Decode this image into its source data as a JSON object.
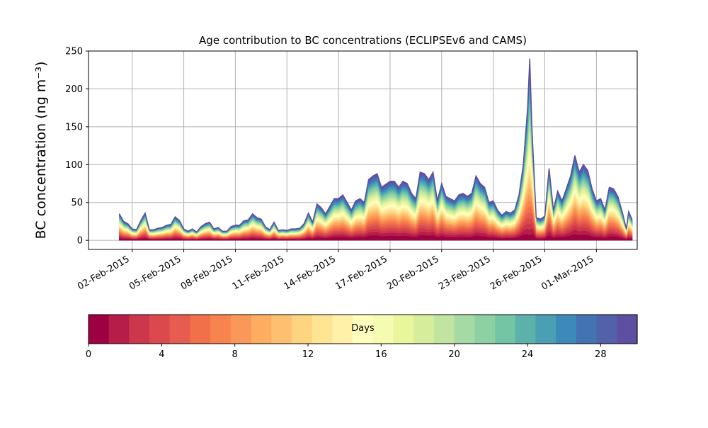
{
  "chart_data": {
    "type": "area",
    "stacked": true,
    "title": "Age contribution to BC concentrations (ECLIPSEv6 and CAMS)",
    "ylabel": "BC concentration (ng m⁻³)",
    "ylim": [
      -12,
      250
    ],
    "yticks": [
      0,
      50,
      100,
      150,
      200,
      250
    ],
    "grid": true,
    "xlim": [
      "2015-01-30T11:00",
      "2015-03-03T09:00"
    ],
    "xticks": [
      "02-Feb-2015",
      "05-Feb-2015",
      "08-Feb-2015",
      "11-Feb-2015",
      "14-Feb-2015",
      "17-Feb-2015",
      "20-Feb-2015",
      "23-Feb-2015",
      "26-Feb-2015",
      "01-Mar-2015"
    ],
    "colorbar": {
      "label": "Days",
      "range": [
        0,
        30
      ],
      "ticks": [
        0,
        4,
        8,
        12,
        16,
        20,
        24,
        28
      ],
      "colors": [
        "#9e0142",
        "#b61d48",
        "#cd374c",
        "#dc494c",
        "#e65d4f",
        "#f1704a",
        "#f7844e",
        "#f99858",
        "#fdad60",
        "#fdc070",
        "#fed481",
        "#fee593",
        "#fff2a8",
        "#fefebe",
        "#f5fbb1",
        "#e8f69c",
        "#d6ee9b",
        "#c1e5a0",
        "#a5daa4",
        "#8cd0a4",
        "#73c5a4",
        "#5cb2ab",
        "#4a9fb2",
        "#3d89ba",
        "#4373b3",
        "#5360aa",
        "#5e4fa2"
      ]
    },
    "total_series": {
      "name": "",
      "points": [
        [
          "2015-02-01T06:00",
          35
        ],
        [
          "2015-02-01T12:00",
          25
        ],
        [
          "2015-02-01T18:00",
          22
        ],
        [
          "2015-02-02T00:00",
          15
        ],
        [
          "2015-02-02T06:00",
          14
        ],
        [
          "2015-02-02T12:00",
          26
        ],
        [
          "2015-02-02T18:00",
          36
        ],
        [
          "2015-02-03T00:00",
          14
        ],
        [
          "2015-02-03T06:00",
          14
        ],
        [
          "2015-02-03T12:00",
          16
        ],
        [
          "2015-02-03T18:00",
          17
        ],
        [
          "2015-02-04T00:00",
          20
        ],
        [
          "2015-02-04T06:00",
          21
        ],
        [
          "2015-02-04T12:00",
          31
        ],
        [
          "2015-02-04T18:00",
          26
        ],
        [
          "2015-02-05T00:00",
          15
        ],
        [
          "2015-02-05T06:00",
          12
        ],
        [
          "2015-02-05T12:00",
          15
        ],
        [
          "2015-02-05T18:00",
          11
        ],
        [
          "2015-02-06T00:00",
          18
        ],
        [
          "2015-02-06T06:00",
          22
        ],
        [
          "2015-02-06T12:00",
          24
        ],
        [
          "2015-02-06T18:00",
          15
        ],
        [
          "2015-02-07T00:00",
          17
        ],
        [
          "2015-02-07T06:00",
          12
        ],
        [
          "2015-02-07T12:00",
          12
        ],
        [
          "2015-02-07T18:00",
          18
        ],
        [
          "2015-02-08T00:00",
          20
        ],
        [
          "2015-02-08T06:00",
          20
        ],
        [
          "2015-02-08T12:00",
          26
        ],
        [
          "2015-02-08T18:00",
          27
        ],
        [
          "2015-02-09T00:00",
          35
        ],
        [
          "2015-02-09T06:00",
          30
        ],
        [
          "2015-02-09T12:00",
          28
        ],
        [
          "2015-02-09T18:00",
          18
        ],
        [
          "2015-02-10T00:00",
          14
        ],
        [
          "2015-02-10T06:00",
          24
        ],
        [
          "2015-02-10T12:00",
          13
        ],
        [
          "2015-02-10T18:00",
          14
        ],
        [
          "2015-02-11T00:00",
          13
        ],
        [
          "2015-02-11T06:00",
          15
        ],
        [
          "2015-02-11T12:00",
          15
        ],
        [
          "2015-02-11T18:00",
          16
        ],
        [
          "2015-02-12T00:00",
          22
        ],
        [
          "2015-02-12T06:00",
          36
        ],
        [
          "2015-02-12T12:00",
          24
        ],
        [
          "2015-02-12T18:00",
          48
        ],
        [
          "2015-02-13T00:00",
          43
        ],
        [
          "2015-02-13T06:00",
          35
        ],
        [
          "2015-02-13T12:00",
          45
        ],
        [
          "2015-02-13T18:00",
          55
        ],
        [
          "2015-02-14T00:00",
          55
        ],
        [
          "2015-02-14T06:00",
          60
        ],
        [
          "2015-02-14T12:00",
          50
        ],
        [
          "2015-02-14T18:00",
          40
        ],
        [
          "2015-02-15T00:00",
          52
        ],
        [
          "2015-02-15T06:00",
          55
        ],
        [
          "2015-02-15T12:00",
          50
        ],
        [
          "2015-02-15T18:00",
          80
        ],
        [
          "2015-02-16T00:00",
          85
        ],
        [
          "2015-02-16T06:00",
          88
        ],
        [
          "2015-02-16T12:00",
          70
        ],
        [
          "2015-02-16T18:00",
          74
        ],
        [
          "2015-02-17T00:00",
          78
        ],
        [
          "2015-02-17T06:00",
          78
        ],
        [
          "2015-02-17T12:00",
          70
        ],
        [
          "2015-02-17T18:00",
          78
        ],
        [
          "2015-02-18T00:00",
          75
        ],
        [
          "2015-02-18T06:00",
          62
        ],
        [
          "2015-02-18T12:00",
          55
        ],
        [
          "2015-02-18T18:00",
          90
        ],
        [
          "2015-02-19T00:00",
          88
        ],
        [
          "2015-02-19T06:00",
          80
        ],
        [
          "2015-02-19T12:00",
          90
        ],
        [
          "2015-02-19T18:00",
          52
        ],
        [
          "2015-02-20T00:00",
          75
        ],
        [
          "2015-02-20T06:00",
          58
        ],
        [
          "2015-02-20T12:00",
          55
        ],
        [
          "2015-02-20T18:00",
          52
        ],
        [
          "2015-02-21T00:00",
          60
        ],
        [
          "2015-02-21T06:00",
          62
        ],
        [
          "2015-02-21T12:00",
          58
        ],
        [
          "2015-02-21T18:00",
          62
        ],
        [
          "2015-02-22T00:00",
          85
        ],
        [
          "2015-02-22T06:00",
          75
        ],
        [
          "2015-02-22T12:00",
          70
        ],
        [
          "2015-02-22T18:00",
          50
        ],
        [
          "2015-02-23T00:00",
          52
        ],
        [
          "2015-02-23T06:00",
          40
        ],
        [
          "2015-02-23T12:00",
          33
        ],
        [
          "2015-02-23T18:00",
          38
        ],
        [
          "2015-02-24T00:00",
          36
        ],
        [
          "2015-02-24T06:00",
          40
        ],
        [
          "2015-02-24T12:00",
          60
        ],
        [
          "2015-02-24T18:00",
          100
        ],
        [
          "2015-02-25T00:00",
          175
        ],
        [
          "2015-02-25T03:00",
          240
        ],
        [
          "2015-02-25T06:00",
          150
        ],
        [
          "2015-02-25T12:00",
          30
        ],
        [
          "2015-02-25T18:00",
          28
        ],
        [
          "2015-02-26T00:00",
          32
        ],
        [
          "2015-02-26T06:00",
          95
        ],
        [
          "2015-02-26T12:00",
          40
        ],
        [
          "2015-02-26T18:00",
          65
        ],
        [
          "2015-02-27T00:00",
          52
        ],
        [
          "2015-02-27T06:00",
          68
        ],
        [
          "2015-02-27T12:00",
          85
        ],
        [
          "2015-02-27T18:00",
          112
        ],
        [
          "2015-02-28T00:00",
          90
        ],
        [
          "2015-02-28T06:00",
          100
        ],
        [
          "2015-02-28T12:00",
          92
        ],
        [
          "2015-02-28T18:00",
          68
        ],
        [
          "2015-03-01T00:00",
          52
        ],
        [
          "2015-03-01T06:00",
          55
        ],
        [
          "2015-03-01T12:00",
          40
        ],
        [
          "2015-03-01T18:00",
          70
        ],
        [
          "2015-03-02T00:00",
          68
        ],
        [
          "2015-03-02T06:00",
          58
        ],
        [
          "2015-03-02T12:00",
          38
        ],
        [
          "2015-03-02T18:00",
          15
        ],
        [
          "2015-03-02T21:00",
          38
        ],
        [
          "2015-03-03T02:00",
          27
        ]
      ]
    }
  }
}
